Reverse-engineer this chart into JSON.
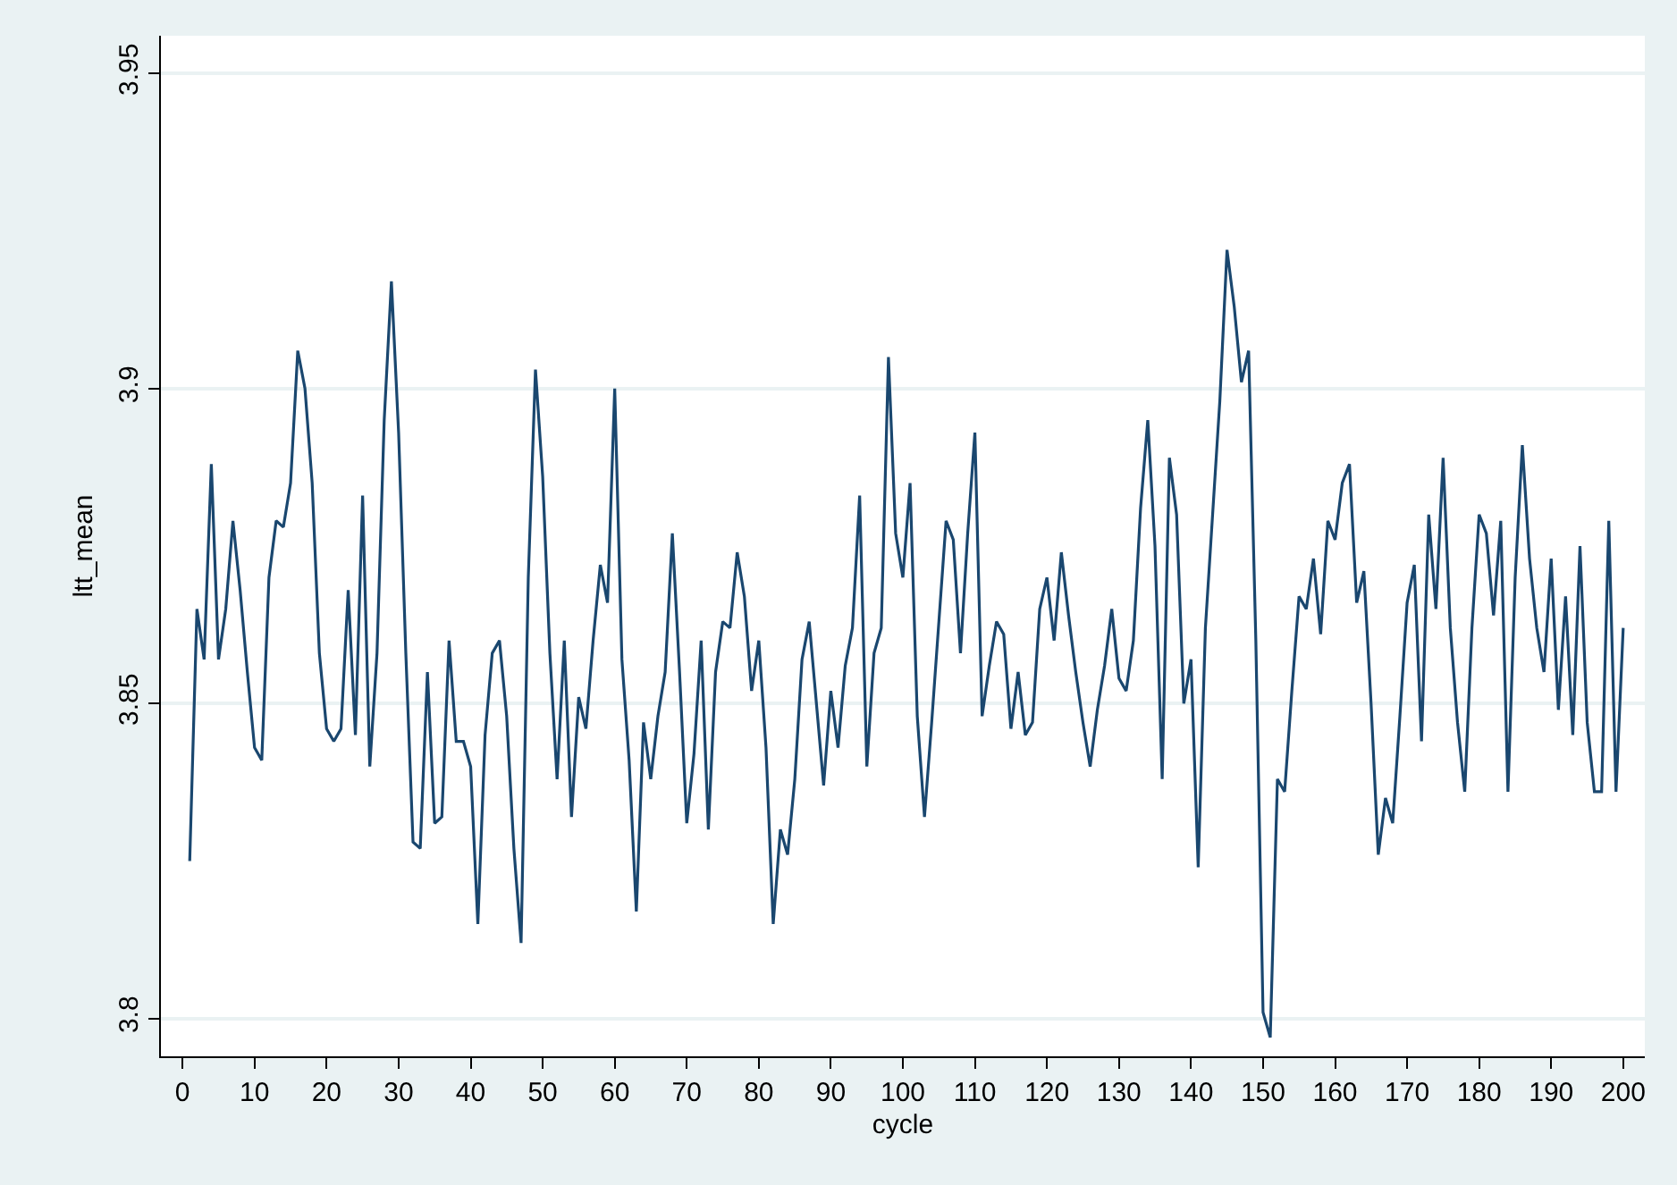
{
  "chart_data": {
    "type": "line",
    "xlabel": "cycle",
    "ylabel": "ltt_mean",
    "x": [
      1,
      2,
      3,
      4,
      5,
      6,
      7,
      8,
      9,
      10,
      11,
      12,
      13,
      14,
      15,
      16,
      17,
      18,
      19,
      20,
      21,
      22,
      23,
      24,
      25,
      26,
      27,
      28,
      29,
      30,
      31,
      32,
      33,
      34,
      35,
      36,
      37,
      38,
      39,
      40,
      41,
      42,
      43,
      44,
      45,
      46,
      47,
      48,
      49,
      50,
      51,
      52,
      53,
      54,
      55,
      56,
      57,
      58,
      59,
      60,
      61,
      62,
      63,
      64,
      65,
      66,
      67,
      68,
      69,
      70,
      71,
      72,
      73,
      74,
      75,
      76,
      77,
      78,
      79,
      80,
      81,
      82,
      83,
      84,
      85,
      86,
      87,
      88,
      89,
      90,
      91,
      92,
      93,
      94,
      95,
      96,
      97,
      98,
      99,
      100,
      101,
      102,
      103,
      104,
      105,
      106,
      107,
      108,
      109,
      110,
      111,
      112,
      113,
      114,
      115,
      116,
      117,
      118,
      119,
      120,
      121,
      122,
      123,
      124,
      125,
      126,
      127,
      128,
      129,
      130,
      131,
      132,
      133,
      134,
      135,
      136,
      137,
      138,
      139,
      140,
      141,
      142,
      143,
      144,
      145,
      146,
      147,
      148,
      149,
      150,
      151,
      152,
      153,
      154,
      155,
      156,
      157,
      158,
      159,
      160,
      161,
      162,
      163,
      164,
      165,
      166,
      167,
      168,
      169,
      170,
      171,
      172,
      173,
      174,
      175,
      176,
      177,
      178,
      179,
      180,
      181,
      182,
      183,
      184,
      185,
      186,
      187,
      188,
      189,
      190,
      191,
      192,
      193,
      194,
      195,
      196,
      197,
      198,
      199,
      200
    ],
    "series": [
      {
        "color": "#1a476f",
        "values": [
          3.825,
          3.865,
          3.857,
          3.888,
          3.857,
          3.865,
          3.879,
          3.868,
          3.855,
          3.843,
          3.841,
          3.87,
          3.879,
          3.878,
          3.885,
          3.906,
          3.9,
          3.885,
          3.858,
          3.846,
          3.844,
          3.846,
          3.868,
          3.845,
          3.883,
          3.84,
          3.858,
          3.895,
          3.917,
          3.893,
          3.858,
          3.828,
          3.827,
          3.855,
          3.831,
          3.832,
          3.86,
          3.844,
          3.844,
          3.84,
          3.815,
          3.845,
          3.858,
          3.86,
          3.848,
          3.827,
          3.812,
          3.87,
          3.903,
          3.886,
          3.858,
          3.838,
          3.86,
          3.832,
          3.851,
          3.846,
          3.86,
          3.872,
          3.866,
          3.9,
          3.857,
          3.841,
          3.817,
          3.847,
          3.838,
          3.848,
          3.855,
          3.877,
          3.855,
          3.831,
          3.842,
          3.86,
          3.83,
          3.855,
          3.863,
          3.862,
          3.874,
          3.867,
          3.852,
          3.86,
          3.843,
          3.815,
          3.83,
          3.826,
          3.838,
          3.857,
          3.863,
          3.85,
          3.837,
          3.852,
          3.843,
          3.856,
          3.862,
          3.883,
          3.84,
          3.858,
          3.862,
          3.905,
          3.877,
          3.87,
          3.885,
          3.848,
          3.832,
          3.847,
          3.863,
          3.879,
          3.876,
          3.858,
          3.877,
          3.893,
          3.848,
          3.856,
          3.863,
          3.861,
          3.846,
          3.855,
          3.845,
          3.847,
          3.865,
          3.87,
          3.86,
          3.874,
          3.864,
          3.855,
          3.847,
          3.84,
          3.849,
          3.856,
          3.865,
          3.854,
          3.852,
          3.86,
          3.881,
          3.895,
          3.875,
          3.838,
          3.889,
          3.88,
          3.85,
          3.857,
          3.824,
          3.862,
          3.88,
          3.898,
          3.922,
          3.913,
          3.901,
          3.906,
          3.86,
          3.801,
          3.797,
          3.838,
          3.836,
          3.852,
          3.867,
          3.865,
          3.873,
          3.861,
          3.879,
          3.876,
          3.885,
          3.888,
          3.866,
          3.871,
          3.85,
          3.826,
          3.835,
          3.831,
          3.848,
          3.866,
          3.872,
          3.844,
          3.88,
          3.865,
          3.889,
          3.862,
          3.847,
          3.836,
          3.862,
          3.88,
          3.877,
          3.864,
          3.879,
          3.836,
          3.87,
          3.891,
          3.873,
          3.862,
          3.855,
          3.873,
          3.849,
          3.867,
          3.845,
          3.875,
          3.847,
          3.836,
          3.836,
          3.879,
          3.836,
          3.862
        ]
      }
    ],
    "xlim": [
      -3,
      203
    ],
    "xticks": [
      0,
      10,
      20,
      30,
      40,
      50,
      60,
      70,
      80,
      90,
      100,
      110,
      120,
      130,
      140,
      150,
      160,
      170,
      180,
      190,
      200
    ],
    "ylim": [
      3.794,
      3.956
    ],
    "yticks": [
      3.8,
      3.85,
      3.9,
      3.95
    ],
    "grid": "y",
    "marker": "none",
    "line_style": "solid"
  }
}
